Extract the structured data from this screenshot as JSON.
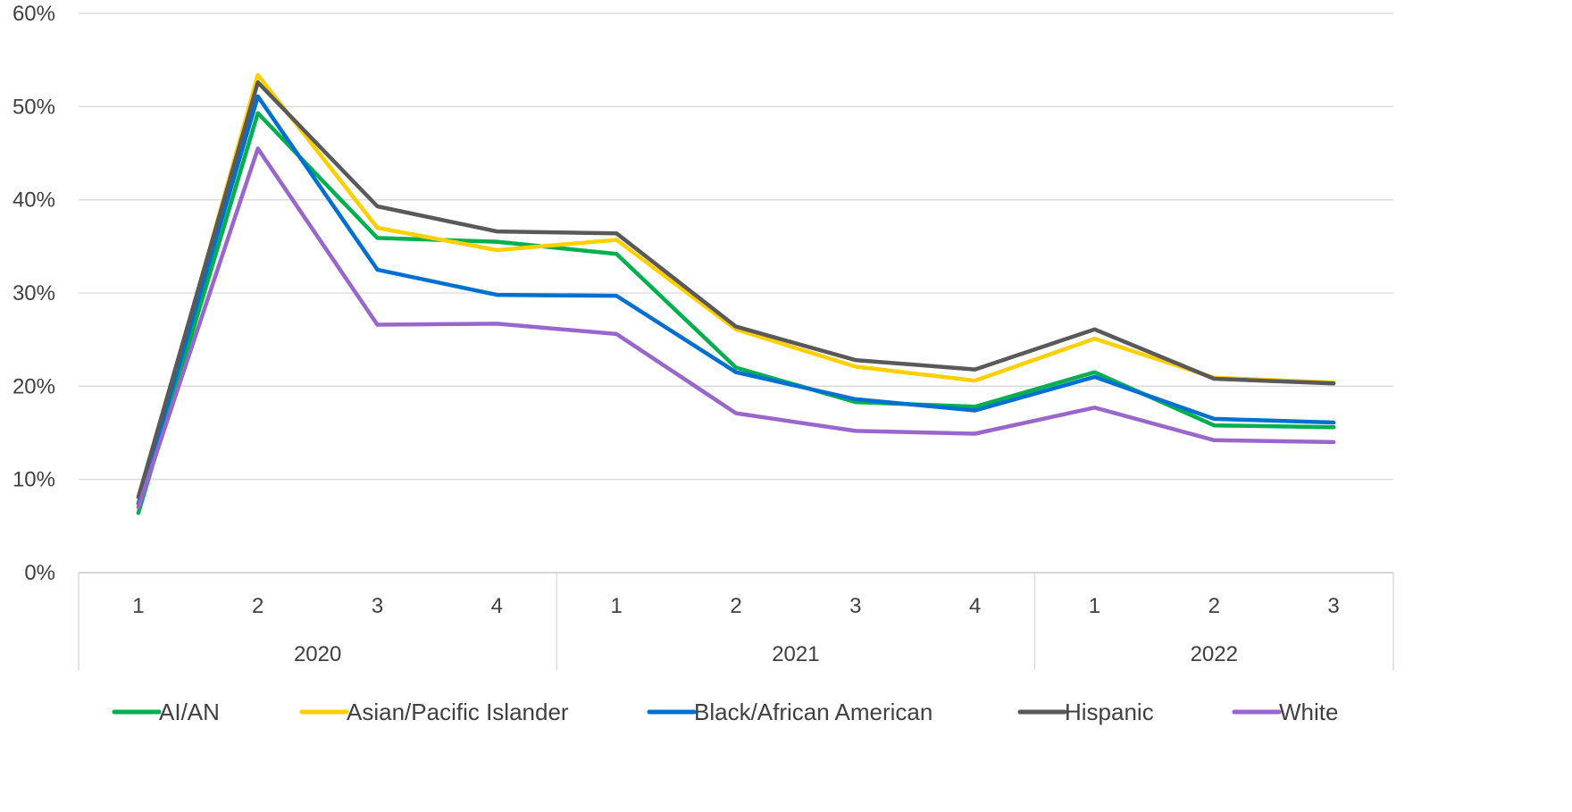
{
  "chart_data": {
    "type": "line",
    "title": "",
    "xlabel": "",
    "ylabel": "",
    "ylim": [
      0,
      60
    ],
    "yticks": [
      "0%",
      "10%",
      "20%",
      "30%",
      "40%",
      "50%",
      "60%"
    ],
    "x": [
      "1",
      "2",
      "3",
      "4",
      "1",
      "2",
      "3",
      "4",
      "1",
      "2",
      "3"
    ],
    "x_groups": [
      {
        "label": "2020",
        "count": 4
      },
      {
        "label": "2021",
        "count": 4
      },
      {
        "label": "2022",
        "count": 3
      }
    ],
    "grid": true,
    "legend_position": "bottom",
    "series": [
      {
        "name": "AI/AN",
        "color": "#00b050",
        "values": [
          6.4,
          49.3,
          35.9,
          35.5,
          34.2,
          22.0,
          18.3,
          17.8,
          21.5,
          15.8,
          15.6
        ]
      },
      {
        "name": "Asian/Pacific Islander",
        "color": "#ffd000",
        "values": [
          7.2,
          53.4,
          37.0,
          34.6,
          35.7,
          26.1,
          22.1,
          20.6,
          25.1,
          20.9,
          20.4
        ]
      },
      {
        "name": "Black/African American",
        "color": "#0070d0",
        "values": [
          7.4,
          51.1,
          32.5,
          29.8,
          29.7,
          21.5,
          18.6,
          17.4,
          21.0,
          16.5,
          16.1
        ]
      },
      {
        "name": "Hispanic",
        "color": "#595959",
        "values": [
          8.1,
          52.6,
          39.3,
          36.6,
          36.4,
          26.4,
          22.8,
          21.8,
          26.1,
          20.8,
          20.3
        ]
      },
      {
        "name": "White",
        "color": "#9966cc",
        "values": [
          7.0,
          45.5,
          26.6,
          26.7,
          25.6,
          17.1,
          15.2,
          14.9,
          17.7,
          14.2,
          14.0
        ]
      }
    ]
  }
}
